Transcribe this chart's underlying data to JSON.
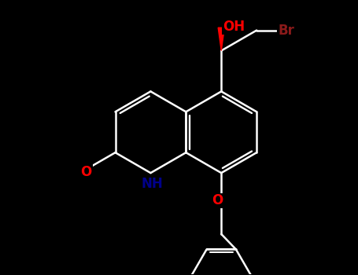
{
  "bg_color": "#000000",
  "bond_color": "#ffffff",
  "bond_width": 1.8,
  "font_size_label": 11,
  "OH_color": "#ff0000",
  "Br_color": "#8b1a1a",
  "NH_color": "#00008b",
  "O_color": "#ff0000",
  "wedge_color": "#ff0000",
  "fig_w": 4.55,
  "fig_h": 3.5,
  "dpi": 100,
  "xlim": [
    0,
    10
  ],
  "ylim": [
    0,
    7.7
  ]
}
